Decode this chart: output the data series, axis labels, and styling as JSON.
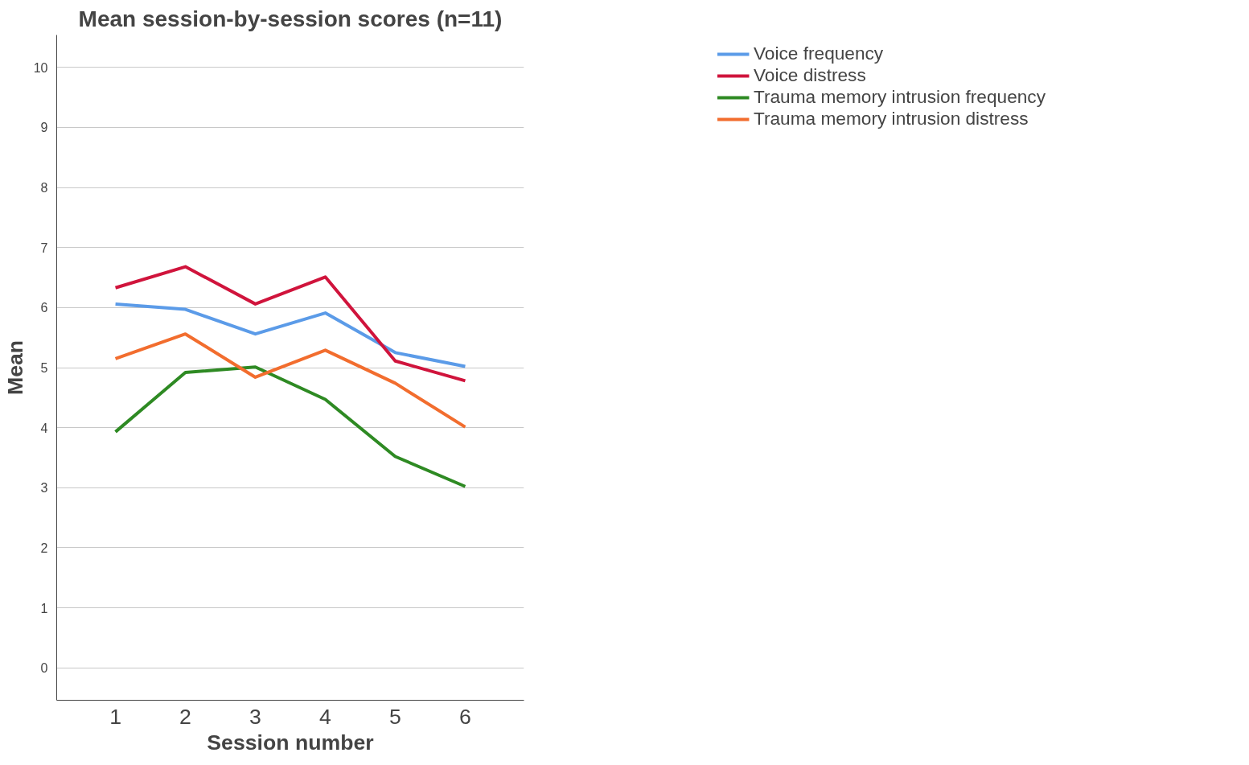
{
  "chart_data": {
    "type": "line",
    "title": "Mean session-by-session scores (n=11)",
    "xlabel": "Session number",
    "ylabel": "Mean",
    "x": [
      1,
      2,
      3,
      4,
      5,
      6
    ],
    "series": [
      {
        "name": "Voice frequency",
        "color": "#5b9be8",
        "values": [
          6.06,
          5.97,
          5.56,
          5.91,
          5.25,
          5.02
        ]
      },
      {
        "name": "Voice distress",
        "color": "#d0143c",
        "values": [
          6.33,
          6.68,
          6.06,
          6.51,
          5.11,
          4.78
        ]
      },
      {
        "name": "Trauma memory intrusion frequency",
        "color": "#2e8a23",
        "values": [
          3.93,
          4.92,
          5.01,
          4.47,
          3.52,
          3.02
        ]
      },
      {
        "name": "Trauma memory intrusion distress",
        "color": "#f26d2e",
        "values": [
          5.15,
          5.56,
          4.84,
          5.29,
          4.74,
          4.01
        ]
      }
    ],
    "xlim": [
      0.16,
      6.84
    ],
    "ylim": [
      -0.54,
      10.54
    ],
    "xticks": [
      1,
      2,
      3,
      4,
      5,
      6
    ],
    "yticks": [
      0,
      1,
      2,
      3,
      4,
      5,
      6,
      7,
      8,
      9,
      10
    ],
    "grid": "y",
    "legend": "top right",
    "marker": "none",
    "line_style": "solid"
  }
}
